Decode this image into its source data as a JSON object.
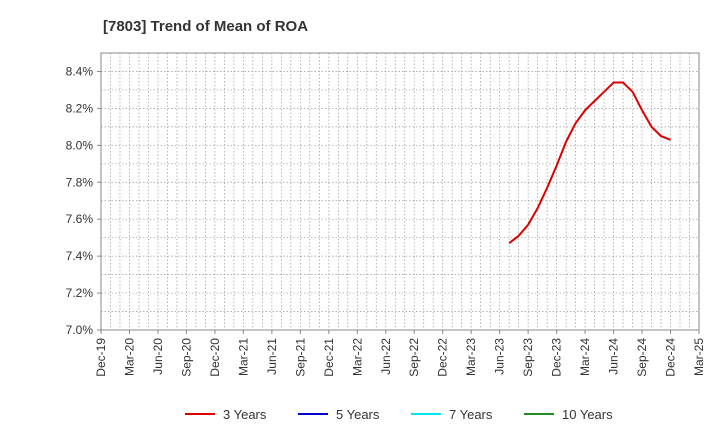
{
  "chart_data": {
    "type": "line",
    "title": "[7803]  Trend of Mean of ROA",
    "xlabel": "",
    "ylabel": "",
    "x_ticks": [
      "Dec-19",
      "Mar-20",
      "Jun-20",
      "Sep-20",
      "Dec-20",
      "Mar-21",
      "Jun-21",
      "Sep-21",
      "Dec-21",
      "Mar-22",
      "Jun-22",
      "Sep-22",
      "Dec-22",
      "Mar-23",
      "Jun-23",
      "Sep-23",
      "Dec-23",
      "Mar-24",
      "Jun-24",
      "Sep-24",
      "Dec-24",
      "Mar-25"
    ],
    "y_ticks": [
      "7.0%",
      "7.2%",
      "7.4%",
      "7.6%",
      "7.8%",
      "8.0%",
      "8.2%",
      "8.4%"
    ],
    "ylim": [
      7.0,
      8.5
    ],
    "y_unit": "%",
    "grid": true,
    "legend_position": "bottom",
    "series": [
      {
        "name": "3 Years",
        "color": "#dd0000",
        "x": [
          "Jul-23",
          "Aug-23",
          "Sep-23",
          "Oct-23",
          "Nov-23",
          "Dec-23",
          "Jan-24",
          "Feb-24",
          "Mar-24",
          "Apr-24",
          "May-24",
          "Jun-24",
          "Jul-24",
          "Aug-24",
          "Sep-24",
          "Oct-24",
          "Nov-24",
          "Dec-24"
        ],
        "values": [
          7.47,
          7.51,
          7.57,
          7.66,
          7.77,
          7.89,
          8.02,
          8.12,
          8.19,
          8.24,
          8.29,
          8.34,
          8.34,
          8.29,
          8.19,
          8.1,
          8.05,
          8.03
        ]
      },
      {
        "name": "5 Years",
        "color": "#0000cc",
        "x": [],
        "values": []
      },
      {
        "name": "7 Years",
        "color": "#00e5ee",
        "x": [],
        "values": []
      },
      {
        "name": "10 Years",
        "color": "#228b22",
        "x": [],
        "values": []
      }
    ]
  }
}
